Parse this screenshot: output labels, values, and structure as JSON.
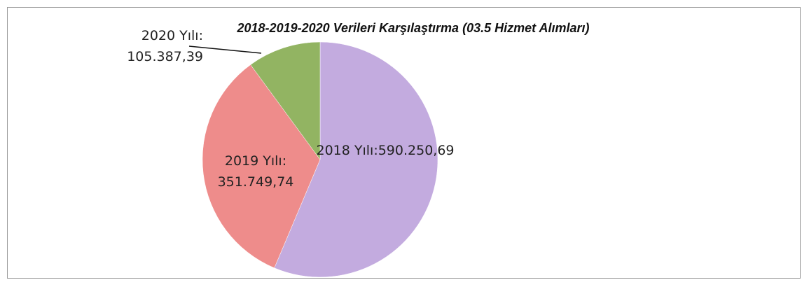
{
  "chart_data": {
    "type": "pie",
    "title": "2018-2019-2020 Verileri Karşılaştırma (03.5 Hizmet Alımları)",
    "values": [
      590250.69,
      351749.74,
      105387.39
    ],
    "value_labels": [
      "2018 Yılı:590.250,69",
      "2019 Yılı: 351.749,74",
      "2020 Yılı: 105.387,39"
    ],
    "colors": [
      "#c3abdf",
      "#ee8c8b",
      "#92b462"
    ]
  }
}
